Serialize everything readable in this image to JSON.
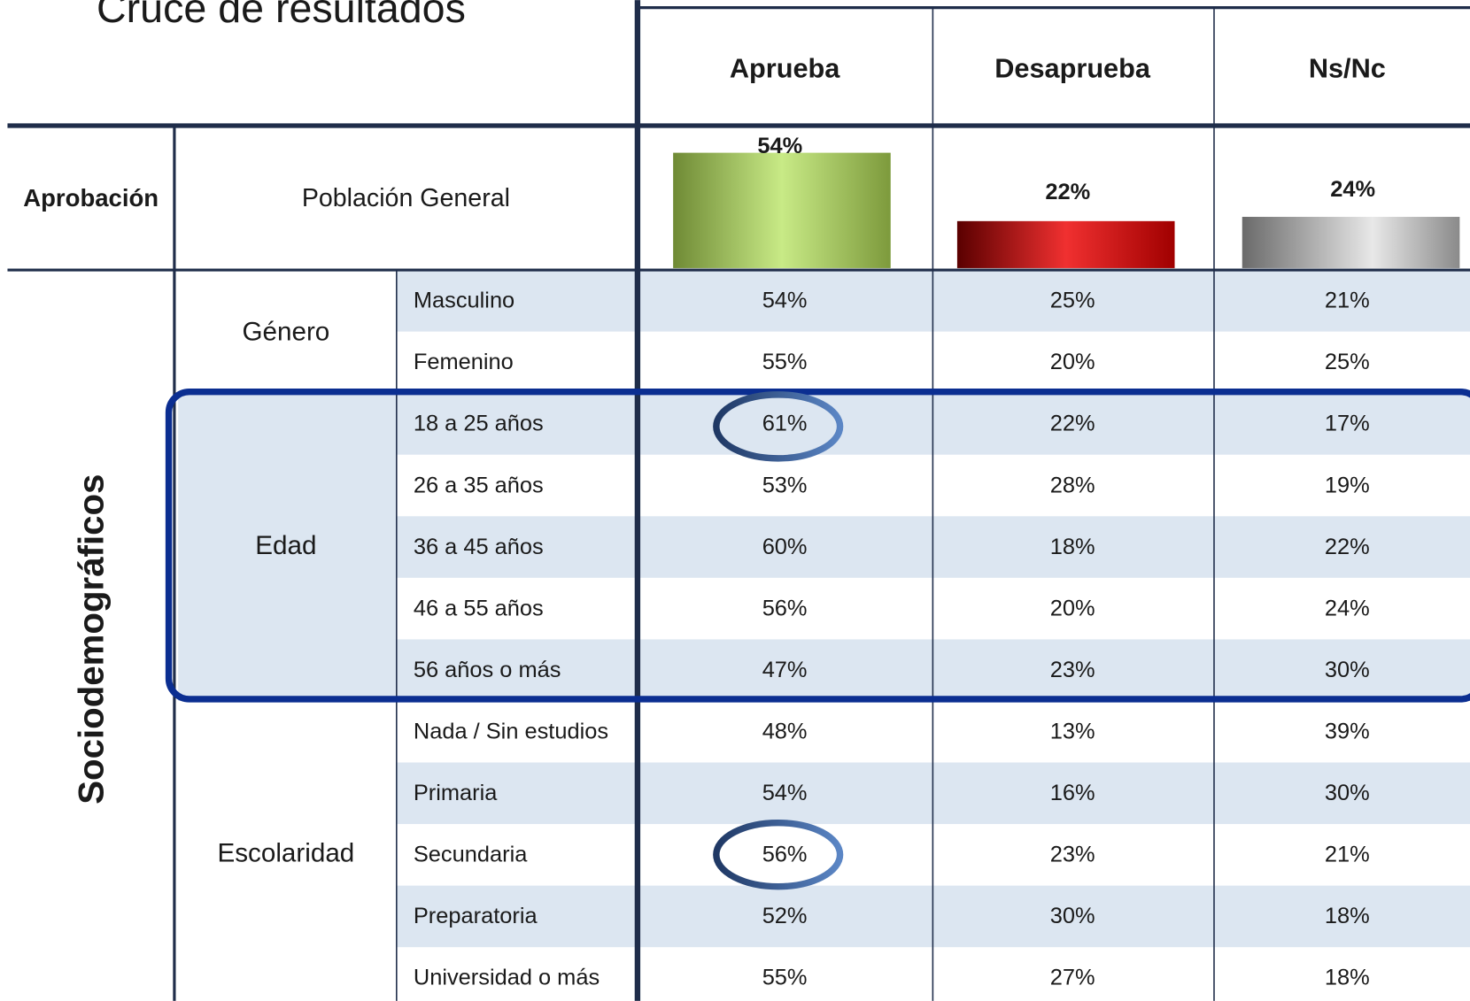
{
  "title": "Cruce de resultados",
  "columns": [
    "Aprueba",
    "Desaprueba",
    "Ns/Nc"
  ],
  "general": {
    "group": "Aprobación",
    "label": "Población General",
    "chart_data": {
      "type": "bar",
      "categories": [
        "Aprueba",
        "Desaprueba",
        "Ns/Nc"
      ],
      "values": [
        54,
        22,
        24
      ],
      "value_labels": [
        "54%",
        "22%",
        "24%"
      ],
      "colors": [
        "#9bbb59",
        "#c00000",
        "#a6a6a6"
      ]
    }
  },
  "section": "Sociodemográficos",
  "groups": [
    {
      "name": "Género",
      "rows": [
        {
          "label": "Masculino",
          "values": [
            "54%",
            "25%",
            "21%"
          ]
        },
        {
          "label": "Femenino",
          "values": [
            "55%",
            "20%",
            "25%"
          ]
        }
      ]
    },
    {
      "name": "Edad",
      "rows": [
        {
          "label": "18 a 25 años",
          "values": [
            "61%",
            "22%",
            "17%"
          ]
        },
        {
          "label": "26 a 35 años",
          "values": [
            "53%",
            "28%",
            "19%"
          ]
        },
        {
          "label": "36 a 45 años",
          "values": [
            "60%",
            "18%",
            "22%"
          ]
        },
        {
          "label": "46 a 55 años",
          "values": [
            "56%",
            "20%",
            "24%"
          ]
        },
        {
          "label": "56 años o más",
          "values": [
            "47%",
            "23%",
            "30%"
          ]
        }
      ]
    },
    {
      "name": "Escolaridad",
      "rows": [
        {
          "label": "Nada / Sin estudios",
          "values": [
            "48%",
            "13%",
            "39%"
          ]
        },
        {
          "label": "Primaria",
          "values": [
            "54%",
            "16%",
            "30%"
          ]
        },
        {
          "label": "Secundaria",
          "values": [
            "56%",
            "23%",
            "21%"
          ]
        },
        {
          "label": "Preparatoria",
          "values": [
            "52%",
            "30%",
            "18%"
          ]
        },
        {
          "label": "Universidad o más",
          "values": [
            "55%",
            "27%",
            "18%"
          ]
        }
      ]
    }
  ]
}
